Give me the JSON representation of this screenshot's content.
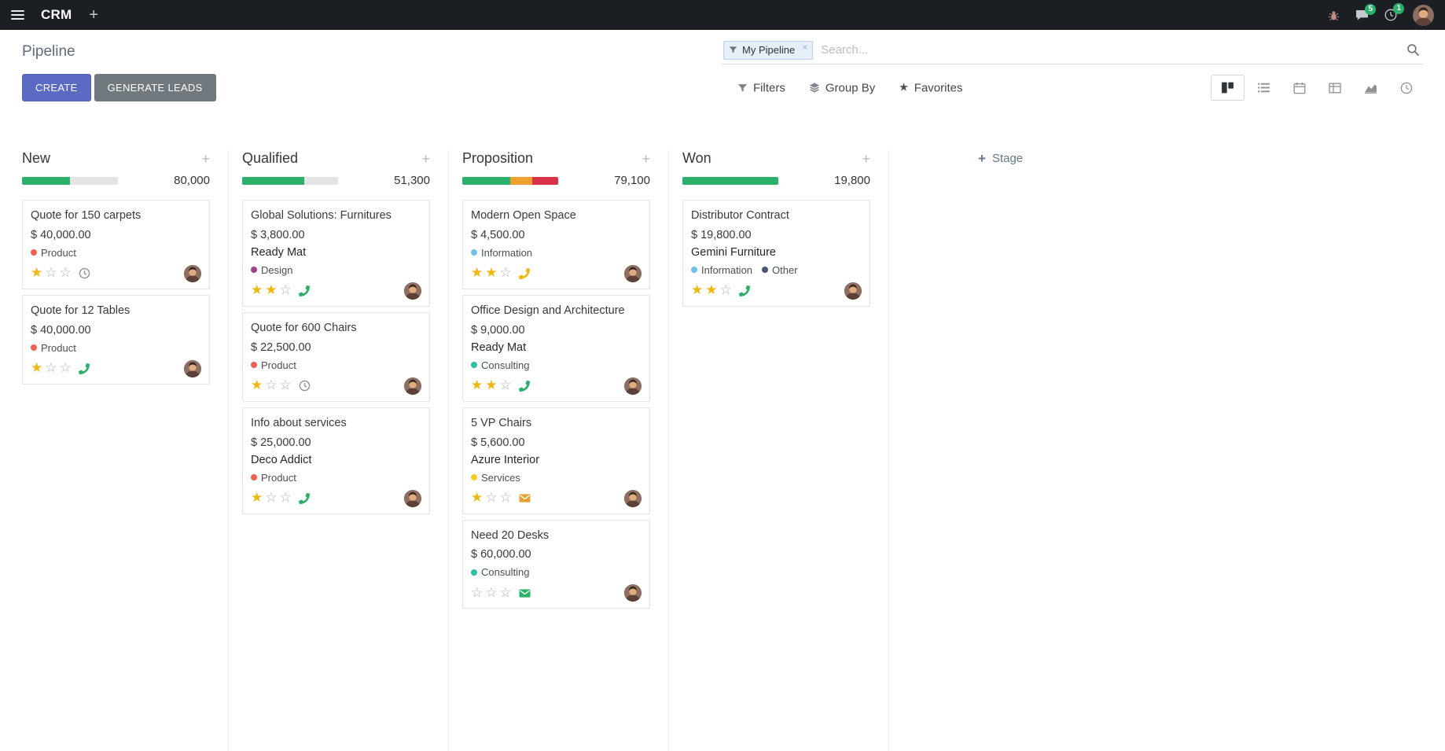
{
  "colors": {
    "brand_primary": "#5b6ac2",
    "muted_button": "#71787e",
    "badge_green": "#2ab06a",
    "star_gold": "#efb810",
    "progress_track": "#e2e4e6"
  },
  "navbar": {
    "app": "CRM",
    "message_count": "5",
    "activity_count": "1"
  },
  "control_panel": {
    "title": "Pipeline",
    "search_facet": "My Pipeline",
    "search_placeholder": "Search...",
    "create_label": "CREATE",
    "generate_leads_label": "GENERATE LEADS",
    "filters_label": "Filters",
    "group_by_label": "Group By",
    "favorites_label": "Favorites"
  },
  "board": {
    "add_stage_label": "Stage",
    "columns": [
      {
        "name": "New",
        "total": "80,000",
        "progress": [
          {
            "name": "success",
            "color": "#2ab06a",
            "pct": 50
          }
        ],
        "cards": [
          {
            "title": "Quote for 150 carpets",
            "amount": "$ 40,000.00",
            "partner": "",
            "tags": [
              {
                "label": "Product",
                "color": "#f06050"
              }
            ],
            "stars": 1,
            "activity": {
              "type": "clock",
              "color": "#8e9399"
            }
          },
          {
            "title": "Quote for 12 Tables",
            "amount": "$ 40,000.00",
            "partner": "",
            "tags": [
              {
                "label": "Product",
                "color": "#f06050"
              }
            ],
            "stars": 1,
            "activity": {
              "type": "phone",
              "color": "#2ab06a"
            }
          }
        ]
      },
      {
        "name": "Qualified",
        "total": "51,300",
        "progress": [
          {
            "name": "success",
            "color": "#2ab06a",
            "pct": 65
          }
        ],
        "cards": [
          {
            "title": "Global Solutions: Furnitures",
            "amount": "$ 3,800.00",
            "partner": "Ready Mat",
            "tags": [
              {
                "label": "Design",
                "color": "#a0428d"
              }
            ],
            "stars": 2,
            "activity": {
              "type": "phone",
              "color": "#2ab06a"
            }
          },
          {
            "title": "Quote for 600 Chairs",
            "amount": "$ 22,500.00",
            "partner": "",
            "tags": [
              {
                "label": "Product",
                "color": "#f06050"
              }
            ],
            "stars": 1,
            "activity": {
              "type": "clock",
              "color": "#8e9399"
            }
          },
          {
            "title": "Info about services",
            "amount": "$ 25,000.00",
            "partner": "Deco Addict",
            "tags": [
              {
                "label": "Product",
                "color": "#f06050"
              }
            ],
            "stars": 1,
            "activity": {
              "type": "phone",
              "color": "#2ab06a"
            }
          }
        ]
      },
      {
        "name": "Proposition",
        "total": "79,100",
        "progress": [
          {
            "name": "success",
            "color": "#2ab06a",
            "pct": 50
          },
          {
            "name": "warning",
            "color": "#efa12f",
            "pct": 23
          },
          {
            "name": "danger",
            "color": "#d9334a",
            "pct": 27
          }
        ],
        "cards": [
          {
            "title": "Modern Open Space",
            "amount": "$ 4,500.00",
            "partner": "",
            "tags": [
              {
                "label": "Information",
                "color": "#6cc1ed"
              }
            ],
            "stars": 2,
            "activity": {
              "type": "phone",
              "color": "#efb810"
            }
          },
          {
            "title": "Office Design and Architecture",
            "amount": "$ 9,000.00",
            "partner": "Ready Mat",
            "tags": [
              {
                "label": "Consulting",
                "color": "#2bbfa3"
              }
            ],
            "stars": 2,
            "activity": {
              "type": "phone",
              "color": "#2ab06a"
            }
          },
          {
            "title": "5 VP Chairs",
            "amount": "$ 5,600.00",
            "partner": "Azure Interior",
            "tags": [
              {
                "label": "Services",
                "color": "#f7cd1f"
              }
            ],
            "stars": 1,
            "activity": {
              "type": "mail",
              "color": "#e5a134"
            }
          },
          {
            "title": "Need 20 Desks",
            "amount": "$ 60,000.00",
            "partner": "",
            "tags": [
              {
                "label": "Consulting",
                "color": "#2bbfa3"
              }
            ],
            "stars": 0,
            "activity": {
              "type": "mail",
              "color": "#2ab06a"
            }
          }
        ]
      },
      {
        "name": "Won",
        "total": "19,800",
        "progress": [
          {
            "name": "success",
            "color": "#2ab06a",
            "pct": 100
          }
        ],
        "cards": [
          {
            "title": "Distributor Contract",
            "amount": "$ 19,800.00",
            "partner": "Gemini Furniture",
            "tags": [
              {
                "label": "Information",
                "color": "#6cc1ed"
              },
              {
                "label": "Other",
                "color": "#475577"
              }
            ],
            "stars": 2,
            "activity": {
              "type": "phone",
              "color": "#2ab06a"
            }
          }
        ]
      }
    ]
  }
}
